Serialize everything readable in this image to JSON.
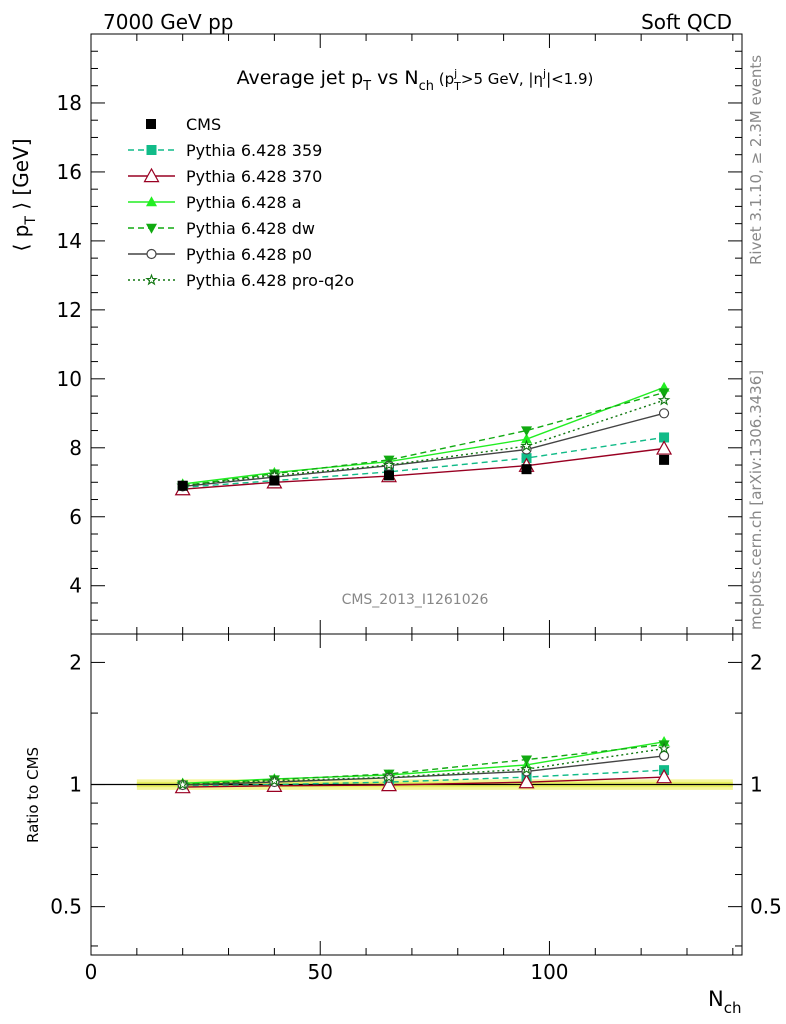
{
  "header": {
    "left": "7000 GeV pp",
    "right": "Soft QCD"
  },
  "side": {
    "rivet": "Rivet 3.1.10, ≥ 2.3M events",
    "mcplots": "mcplots.cern.ch [arXiv:1306.3436]"
  },
  "watermark": "CMS_2013_I1261026",
  "chart_data": {
    "type": "line",
    "title": "Average jet p_T vs N_ch (p_T^j>5 GeV, |η^j|<1.9)",
    "xlabel": "N_ch",
    "ylabel": "⟨ p_T ⟩ [GeV]",
    "ratio_ylabel": "Ratio to CMS",
    "xlim": [
      0,
      142
    ],
    "ylim": [
      2.6,
      20
    ],
    "ratio_ylim": [
      0.38,
      2.35
    ],
    "ratio_log": true,
    "x": [
      20,
      40,
      65,
      95,
      125
    ],
    "x_ticks": [
      0,
      50,
      100
    ],
    "y_ticks": [
      4,
      6,
      8,
      10,
      12,
      14,
      16,
      18
    ],
    "ratio_ticks": [
      0.5,
      1,
      2
    ],
    "legend_position": "top-left",
    "data": {
      "name": "CMS",
      "values": [
        6.9,
        7.05,
        7.2,
        7.38,
        7.65
      ],
      "band_x": [
        10,
        140
      ]
    },
    "series": [
      {
        "name": "Pythia 6.428 359",
        "values": [
          6.85,
          7.05,
          7.3,
          7.7,
          8.3
        ],
        "color": "#11bb88",
        "dash": "6,4",
        "marker": "square-filled"
      },
      {
        "name": "Pythia 6.428 370",
        "values": [
          6.8,
          7.0,
          7.18,
          7.48,
          7.98
        ],
        "color": "#990022",
        "dash": "",
        "marker": "triangle-open"
      },
      {
        "name": "Pythia 6.428 a",
        "values": [
          6.95,
          7.28,
          7.6,
          8.25,
          9.75
        ],
        "color": "#22ee22",
        "dash": "",
        "marker": "triangle-filled"
      },
      {
        "name": "Pythia 6.428 dw",
        "values": [
          6.9,
          7.25,
          7.65,
          8.5,
          9.6
        ],
        "color": "#11aa11",
        "dash": "6,4",
        "marker": "triangle-down-filled"
      },
      {
        "name": "Pythia 6.428 p0",
        "values": [
          6.88,
          7.15,
          7.48,
          7.95,
          9.0
        ],
        "color": "#444444",
        "dash": "",
        "marker": "circle-open"
      },
      {
        "name": "Pythia 6.428 pro-q2o",
        "values": [
          6.9,
          7.2,
          7.5,
          8.05,
          9.38
        ],
        "color": "#117711",
        "dash": "2,3",
        "marker": "star-open"
      }
    ]
  }
}
